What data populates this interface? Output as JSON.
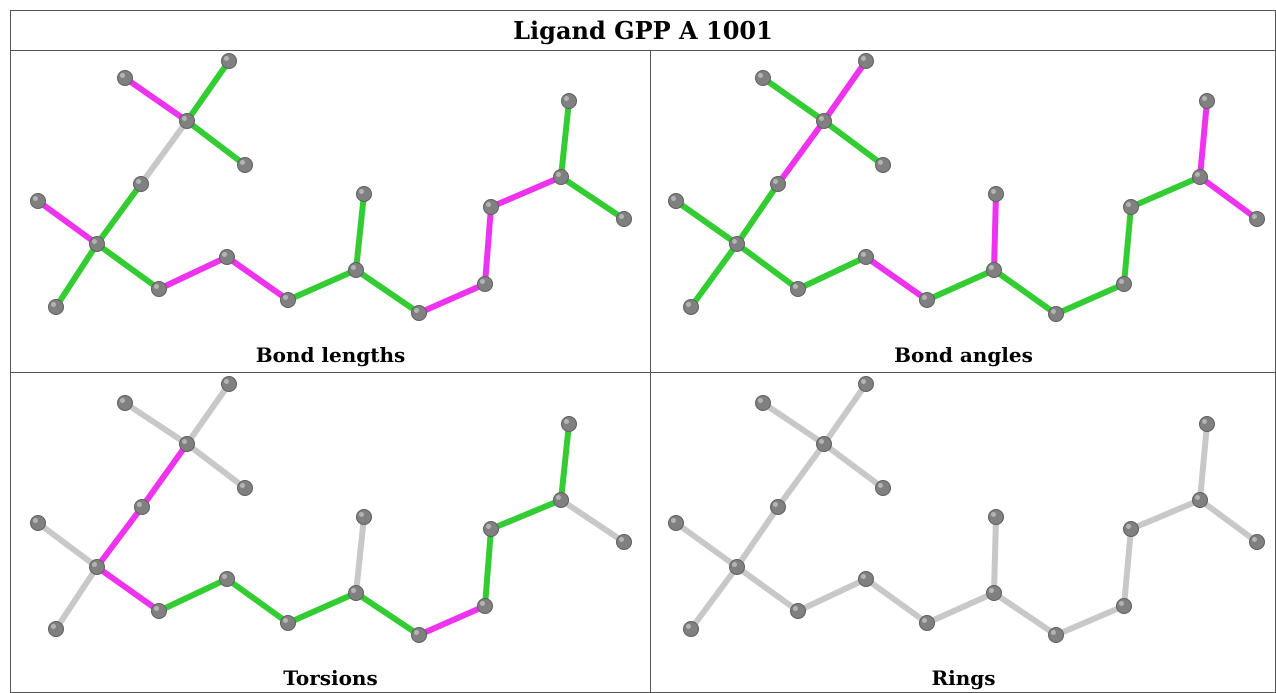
{
  "title": "Ligand GPP A 1001",
  "colors": {
    "good": "#33cc33",
    "outlier": "#ee33ee",
    "neutral": "#c8c8c8",
    "atom": "#808080"
  },
  "panels": [
    {
      "caption": "Bond lengths",
      "bonds": [
        "m",
        "g",
        "g",
        "n",
        "g",
        "m",
        "g",
        "g",
        "m",
        "m",
        "g",
        "g",
        "g",
        "m",
        "m",
        "m",
        "g",
        "g"
      ]
    },
    {
      "caption": "Bond angles",
      "bonds": [
        "g",
        "m",
        "g",
        "m",
        "g",
        "g",
        "g",
        "g",
        "g",
        "m",
        "g",
        "m",
        "g",
        "g",
        "g",
        "g",
        "m",
        "m"
      ]
    },
    {
      "caption": "Torsions",
      "bonds": [
        "n",
        "n",
        "n",
        "m",
        "m",
        "n",
        "n",
        "m",
        "g",
        "g",
        "g",
        "n",
        "g",
        "m",
        "g",
        "g",
        "g",
        "n"
      ]
    },
    {
      "caption": "Rings",
      "bonds": [
        "n",
        "n",
        "n",
        "n",
        "n",
        "n",
        "n",
        "n",
        "n",
        "n",
        "n",
        "n",
        "n",
        "n",
        "n",
        "n",
        "n",
        "n"
      ]
    }
  ]
}
